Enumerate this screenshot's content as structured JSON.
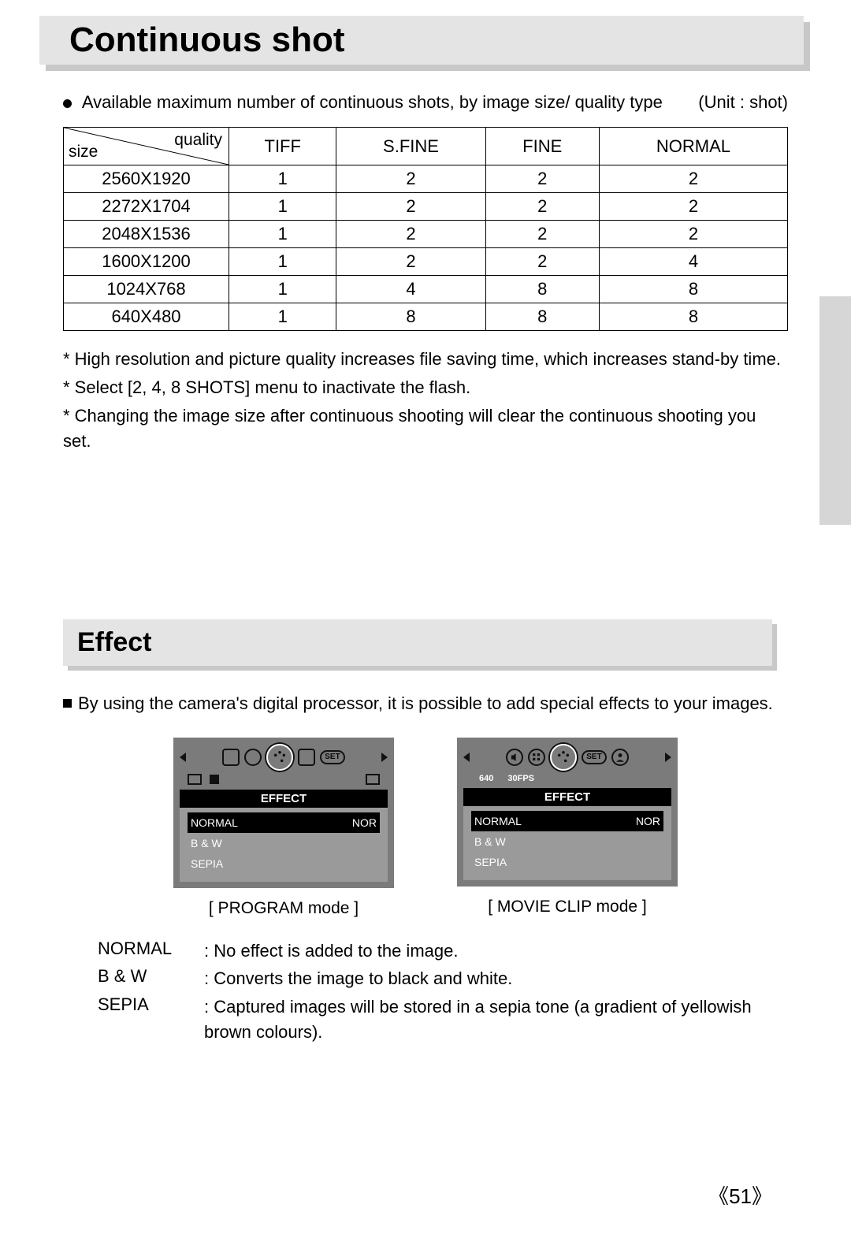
{
  "section1": {
    "title": "Continuous shot",
    "intro": "Available maximum number of continuous shots, by image size/ quality type",
    "unit_label": "(Unit : shot)"
  },
  "table": {
    "corner_size": "size",
    "corner_quality": "quality",
    "columns": [
      "TIFF",
      "S.FINE",
      "FINE",
      "NORMAL"
    ],
    "rows": [
      {
        "size": "2560X1920",
        "values": [
          "1",
          "2",
          "2",
          "2"
        ]
      },
      {
        "size": "2272X1704",
        "values": [
          "1",
          "2",
          "2",
          "2"
        ]
      },
      {
        "size": "2048X1536",
        "values": [
          "1",
          "2",
          "2",
          "2"
        ]
      },
      {
        "size": "1600X1200",
        "values": [
          "1",
          "2",
          "2",
          "4"
        ]
      },
      {
        "size": "1024X768",
        "values": [
          "1",
          "4",
          "8",
          "8"
        ]
      },
      {
        "size": "640X480",
        "values": [
          "1",
          "8",
          "8",
          "8"
        ]
      }
    ]
  },
  "notes": {
    "n0": "* High resolution and picture quality increases file saving time, which increases stand-by time.",
    "n1": "* Select [2, 4, 8 SHOTS] menu to inactivate the flash.",
    "n2": "* Changing the image size after continuous shooting will clear the continuous shooting you set."
  },
  "section2": {
    "title": "Effect",
    "intro": "By using the camera's digital processor, it is possible to add special effects to your images."
  },
  "menu": {
    "set_label": "SET",
    "header": "EFFECT",
    "items": [
      {
        "label": "NORMAL",
        "badge": "NOR",
        "selected": true
      },
      {
        "label": "B & W",
        "badge": "",
        "selected": false
      },
      {
        "label": "SEPIA",
        "badge": "",
        "selected": false
      }
    ],
    "movie_sub": {
      "res": "640",
      "fps": "30FPS"
    }
  },
  "captions": {
    "program": "[ PROGRAM mode ]",
    "movie": "[ MOVIE CLIP mode ]"
  },
  "defs": {
    "normal": {
      "term": "NORMAL",
      "text": ": No effect is added to the image."
    },
    "bw": {
      "term": "B & W",
      "text": ": Converts the image to black and white."
    },
    "sepia": {
      "term": "SEPIA",
      "text": ": Captured images will be stored in a sepia tone (a gradient of yellowish brown colours)."
    }
  },
  "page_number": "51",
  "colors": {
    "bar_bg": "#e4e4e4",
    "bar_shadow": "#c8c8c8",
    "screen_bg": "#7b7b7b",
    "menu_body_bg": "#9a9a9a",
    "side_tab": "#d6d6d6"
  }
}
